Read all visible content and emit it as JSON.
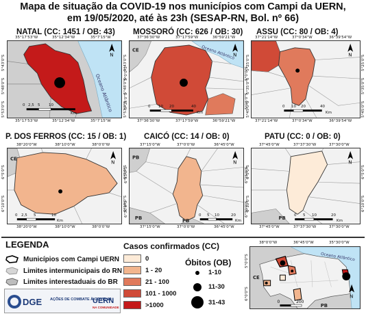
{
  "title": {
    "line1": "Mapa de situação da COVID-19 nos municípios com Campi da UERN,",
    "line2": "em 19/05/2020, até às 23h (SESAP-RN, Bol. nº 66)"
  },
  "colors": {
    "cc_0": "#fdebd8",
    "cc_1_20": "#f2b58e",
    "cc_21_100": "#e07a5c",
    "cc_101_1000": "#d04a37",
    "cc_1000_plus": "#c41a1a",
    "ocean": "#bfe3f5",
    "neighbor": "#cfcfcf",
    "state": "#f2f2f2"
  },
  "maps": [
    {
      "id": "natal",
      "title": "NATAL (CC: 1451 / OB: 43)",
      "top_ticks": [
        "35°17'53\"W",
        "35°12'34\"W",
        "35°7'15\"W"
      ],
      "bottom_ticks": [
        "35°17'53\"W",
        "35°12'34\"W",
        "35°7'15\"W"
      ],
      "left_ticks": [
        "5°43'0\"S",
        "5°48'0\"S",
        "5°53'0\"S"
      ],
      "right_ticks": [
        "5°43'0\"S",
        "5°48'0\"S",
        "5°53'0\"S"
      ],
      "scale": [
        "0",
        "2,5",
        "5",
        "10"
      ],
      "scale_unit": "Km",
      "labels": [
        "Oceano Atlântico"
      ],
      "north": "N"
    },
    {
      "id": "mossoro",
      "title": "MOSSORÓ (CC: 626 / OB: 30)",
      "top_ticks": [
        "37°36'30\"W",
        "37°17'59\"W",
        "36°59'21\"W"
      ],
      "bottom_ticks": [
        "37°36'30\"W",
        "37°17'59\"W",
        "36°59'21\"W"
      ],
      "left_ticks": [
        "5°0'0\"S",
        "5°15'0\"S"
      ],
      "right_ticks": [
        "5°0'0\"S",
        "5°15'0\"S"
      ],
      "scale": [
        "0",
        "10",
        "20",
        "40"
      ],
      "scale_unit": "Km",
      "labels": [
        "CE",
        "Oceano Atlântico"
      ],
      "north": "N"
    },
    {
      "id": "assu",
      "title": "ASSU (CC: 80 / OB: 4)",
      "top_ticks": [
        "37°21'14\"W",
        "37°0'34\"W",
        "36°39'54\"W"
      ],
      "bottom_ticks": [
        "37°21'14\"W",
        "37°0'34\"W",
        "36°39'54\"W"
      ],
      "left_ticks": [
        "5°25'0\"S",
        "5°35'0\"S",
        "5°45'0\"S"
      ],
      "right_ticks": [
        "5°25'0\"S",
        "5°35'0\"S",
        "5°45'0\"S"
      ],
      "scale": [
        "0",
        "10",
        "20",
        "40"
      ],
      "scale_unit": "Km",
      "labels": [],
      "north": "N"
    },
    {
      "id": "pdosferros",
      "title": "P. DOS FERROS (CC: 15 / OB: 1)",
      "top_ticks": [
        "38°20'0\"W",
        "38°10'0\"W",
        "38°0'0\"W"
      ],
      "bottom_ticks": [
        "38°20'0\"W",
        "38°10'0\"W",
        "38°0'0\"W"
      ],
      "left_ticks": [
        "6°5'0\"S",
        "6°10'0\"S"
      ],
      "right_ticks": [
        "6°5'0\"S",
        "6°10'0\"S"
      ],
      "scale": [
        "0",
        "2,5",
        "5",
        "10"
      ],
      "scale_unit": "Km",
      "labels": [
        "CE"
      ],
      "north": "N"
    },
    {
      "id": "caico",
      "title": "CAICÓ (CC: 14 / OB: 0)",
      "top_ticks": [
        "37°15'0\"W",
        "37°0'0\"W",
        "36°45'0\"W"
      ],
      "bottom_ticks": [
        "37°15'0\"W",
        "37°0'0\"W",
        "36°45'0\"W"
      ],
      "left_ticks": [
        "6°15'0\"S",
        "6°30'0\"S"
      ],
      "right_ticks": [
        "6°15'0\"S",
        "6°30'0\"S"
      ],
      "scale": [
        "0",
        "5",
        "10",
        "20"
      ],
      "scale_unit": "Km",
      "labels": [
        "PB",
        "PB"
      ],
      "north": "N"
    },
    {
      "id": "patu",
      "title": "PATU (CC: 0 / OB: 0)",
      "top_ticks": [
        "37°45'0\"W",
        "37°37'30\"W",
        "37°30'0\"W"
      ],
      "bottom_ticks": [
        "37°45'0\"W",
        "37°37'30\"W",
        "37°30'0\"W"
      ],
      "left_ticks": [
        "6°5'0\"S",
        "6°10'0\"S"
      ],
      "right_ticks": [
        "6°5'0\"S",
        "6°10'0\"S"
      ],
      "scale": [
        "0",
        "5",
        "10",
        "20"
      ],
      "scale_unit": "Km",
      "labels": [
        "PB"
      ],
      "north": "N"
    }
  ],
  "legend": {
    "title": "LEGENDA",
    "items": [
      "Municípios com Campi UERN",
      "Limites intermunicipais do RN",
      "Limites interestaduais do BR"
    ],
    "cc_title": "Casos confirmados (CC)",
    "cc_classes": [
      "0",
      "1 - 20",
      "21 - 100",
      "101 - 1000",
      ">1000"
    ],
    "ob_title": "Óbitos (OB)",
    "ob_classes": [
      "1-10",
      "11-30",
      "31-43"
    ]
  },
  "overview": {
    "top_ticks": [
      "38°0'0\"W",
      "36°45'0\"W",
      "35°30'0\"W"
    ],
    "left_ticks": [
      "5°0'0\"S",
      "6°0'0\"S"
    ],
    "labels": [
      "CE",
      "Oceano Atlântico",
      "PB"
    ],
    "scale": [
      "0",
      "200"
    ],
    "north": "N"
  },
  "logos": {
    "dge": "DGE",
    "acoes": "AÇÕES DE COMBATE À COVID 19",
    "uern": "UERN",
    "uern_sub": "NA COMUNIDADE"
  }
}
